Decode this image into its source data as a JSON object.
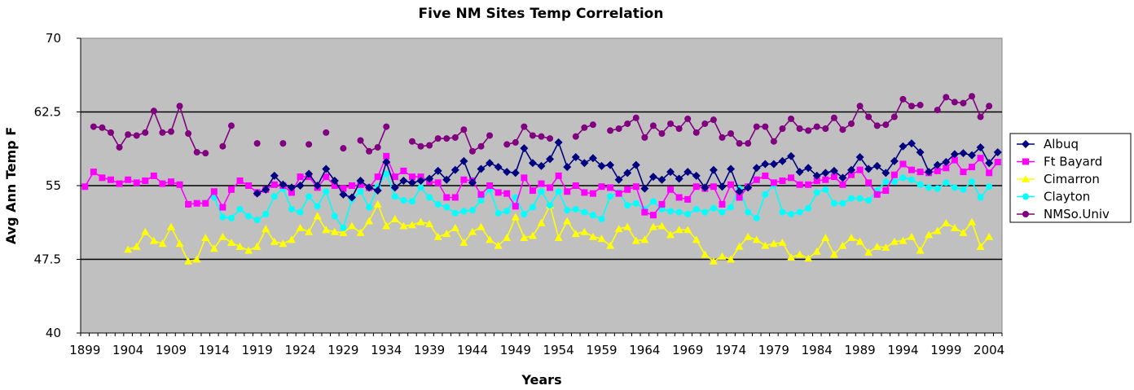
{
  "chart_data": {
    "type": "line",
    "title": "Five NM Sites Temp Correlation",
    "xlabel": "Years",
    "ylabel": "Avg Ann Temp F",
    "ylim": [
      40,
      70
    ],
    "xlim": [
      1899,
      2005
    ],
    "y_ticks": [
      "40",
      "47.5",
      "55",
      "62.5",
      "70"
    ],
    "y_tick_values": [
      40,
      47.5,
      55,
      62.5,
      70
    ],
    "x_ticks": [
      "1899",
      "1904",
      "1909",
      "1914",
      "1919",
      "1924",
      "1929",
      "1934",
      "1939",
      "1944",
      "1949",
      "1954",
      "1959",
      "1964",
      "1969",
      "1974",
      "1979",
      "1984",
      "1989",
      "1994",
      "1999",
      "2004"
    ],
    "gridlines": [
      47.5,
      55,
      62.5
    ],
    "plot_background": "#c0c0c0",
    "legend_position": "right",
    "series": [
      {
        "name": "Albuq",
        "color": "#000080",
        "marker": "diamond",
        "start_year": 1919,
        "values": [
          54.2,
          54.6,
          56.0,
          55.1,
          54.8,
          55.0,
          56.2,
          55.0,
          56.7,
          55.5,
          54.1,
          53.8,
          55.5,
          54.8,
          54.5,
          57.4,
          54.8,
          55.5,
          55.3,
          55.5,
          55.7,
          56.5,
          55.6,
          56.6,
          57.5,
          55.3,
          56.7,
          57.3,
          56.9,
          56.4,
          56.3,
          58.8,
          57.3,
          57.0,
          57.7,
          59.4,
          56.9,
          57.9,
          57.3,
          57.8,
          57.0,
          57.1,
          55.6,
          56.3,
          57.1,
          54.7,
          55.9,
          55.6,
          56.4,
          55.7,
          56.4,
          56.0,
          54.8,
          56.6,
          54.9,
          56.7,
          54.4,
          54.8,
          56.8,
          57.2,
          57.2,
          57.5,
          58.0,
          56.4,
          56.8,
          56.0,
          56.3,
          56.5,
          55.8,
          56.6,
          57.9,
          56.7,
          57.0,
          56.3,
          57.5,
          59.0,
          59.3,
          58.4,
          56.4,
          57.1,
          57.4,
          58.2,
          58.3,
          58.1,
          58.9,
          57.3,
          58.4
        ]
      },
      {
        "name": "Ft Bayard",
        "color": "#ff00ff",
        "marker": "square",
        "start_year": 1899,
        "values": [
          54.9,
          56.4,
          55.8,
          55.6,
          55.2,
          55.6,
          55.3,
          55.5,
          56.0,
          55.2,
          55.4,
          55.1,
          53.1,
          53.2,
          53.2,
          54.4,
          52.8,
          54.6,
          55.5,
          55.0,
          54.3,
          54.6,
          55.1,
          55.0,
          54.3,
          55.9,
          55.9,
          54.8,
          55.9,
          55.0,
          54.7,
          55.0,
          55.1,
          54.8,
          55.9,
          58.0,
          55.9,
          56.5,
          55.9,
          55.9,
          55.4,
          55.3,
          53.8,
          53.8,
          55.6,
          55.5,
          54.1,
          55.0,
          54.3,
          54.2,
          52.9,
          55.8,
          54.5,
          55.2,
          54.8,
          56.0,
          54.4,
          55.0,
          54.3,
          54.2,
          54.9,
          54.8,
          54.2,
          54.6,
          54.9,
          52.3,
          52.0,
          53.1,
          54.6,
          53.8,
          53.6,
          54.9,
          54.7,
          54.9,
          53.1,
          55.1,
          53.8,
          54.9,
          55.6,
          56.0,
          55.3,
          55.5,
          55.8,
          55.1,
          55.1,
          55.5,
          55.6,
          55.9,
          55.1,
          56.1,
          56.6,
          55.3,
          54.1,
          54.5,
          56.1,
          57.2,
          56.6,
          56.4,
          56.3,
          56.5,
          56.8,
          57.6,
          56.4,
          56.9,
          57.8,
          56.3,
          57.4
        ]
      },
      {
        "name": "Cimarron",
        "color": "#ffff00",
        "marker": "triangle",
        "start_year": 1904,
        "values": [
          48.5,
          48.8,
          50.3,
          49.4,
          49.1,
          50.8,
          49.1,
          47.3,
          47.5,
          49.7,
          48.6,
          49.8,
          49.2,
          48.8,
          48.4,
          48.8,
          50.6,
          49.3,
          49.1,
          49.5,
          50.7,
          50.3,
          51.9,
          50.5,
          50.3,
          50.2,
          50.9,
          50.2,
          51.4,
          53.1,
          50.9,
          51.6,
          50.9,
          51.0,
          51.3,
          51.1,
          49.8,
          50.1,
          50.7,
          49.2,
          50.3,
          50.8,
          49.5,
          48.9,
          49.7,
          51.8,
          49.7,
          49.9,
          51.2,
          53.0,
          49.7,
          51.4,
          50.1,
          50.3,
          49.8,
          49.6,
          48.9,
          50.6,
          50.8,
          49.4,
          49.5,
          50.8,
          50.9,
          50.0,
          50.5,
          50.5,
          49.5,
          48.0,
          47.3,
          47.8,
          47.5,
          48.8,
          49.8,
          49.5,
          48.9,
          49.1,
          49.2,
          47.7,
          48.0,
          47.6,
          48.3,
          49.7,
          48.0,
          48.9,
          49.7,
          49.3,
          48.2,
          48.8,
          48.7,
          49.3,
          49.4,
          49.8,
          48.4,
          50.0,
          50.4,
          51.2,
          50.7,
          50.2,
          51.3,
          48.8,
          49.8
        ]
      },
      {
        "name": "Clayton",
        "color": "#00ffff",
        "marker": "circle",
        "start_year": 1914,
        "values": [
          53.8,
          51.8,
          51.7,
          52.6,
          51.9,
          51.5,
          52.1,
          53.9,
          54.7,
          52.6,
          52.3,
          53.9,
          52.9,
          54.4,
          51.9,
          50.7,
          53.6,
          54.4,
          52.8,
          54.9,
          56.2,
          53.9,
          53.5,
          53.4,
          54.8,
          53.8,
          53.1,
          52.8,
          52.2,
          52.4,
          52.5,
          53.5,
          54.6,
          52.2,
          52.4,
          53.8,
          52.1,
          52.8,
          54.4,
          53.0,
          54.4,
          52.5,
          52.6,
          52.3,
          52.0,
          51.6,
          53.9,
          54.3,
          53.0,
          53.2,
          52.6,
          53.4,
          52.6,
          52.4,
          52.3,
          52.1,
          52.6,
          52.3,
          52.7,
          52.3,
          52.8,
          54.7,
          52.3,
          51.7,
          54.1,
          55.1,
          52.3,
          52.1,
          52.3,
          52.7,
          54.3,
          54.6,
          53.2,
          53.2,
          53.7,
          53.7,
          53.5,
          54.5,
          55.4,
          55.4,
          55.8,
          55.6,
          55.1,
          54.8,
          54.7,
          55.3,
          54.8,
          54.6,
          55.4,
          53.8,
          54.9
        ]
      },
      {
        "name": "NMSo.Univ",
        "color": "#800080",
        "marker": "circle",
        "start_year": 1899,
        "segments": [
          {
            "start_year": 1900,
            "values": [
              61.0,
              60.9,
              60.4,
              58.9,
              60.2,
              60.1,
              60.4,
              62.6,
              60.4,
              60.5,
              63.1,
              60.3,
              58.4,
              58.3
            ]
          },
          {
            "start_year": 1915,
            "values": [
              59.0,
              61.1
            ]
          },
          {
            "start_year": 1919,
            "values": [
              59.3
            ]
          },
          {
            "start_year": 1922,
            "values": [
              59.3
            ]
          },
          {
            "start_year": 1925,
            "values": [
              59.2
            ]
          },
          {
            "start_year": 1927,
            "values": [
              60.4
            ]
          },
          {
            "start_year": 1929,
            "values": [
              58.8
            ]
          },
          {
            "start_year": 1931,
            "values": [
              59.6,
              58.5,
              58.9,
              61.0
            ]
          },
          {
            "start_year": 1937,
            "values": [
              59.5,
              59.0,
              59.1,
              59.8,
              59.8,
              59.9,
              60.7,
              58.5,
              59.0,
              60.1
            ]
          },
          {
            "start_year": 1948,
            "values": [
              59.2,
              59.4,
              61.0,
              60.1,
              60.0,
              59.8
            ]
          },
          {
            "start_year": 1956,
            "values": [
              60.0,
              60.9,
              61.2
            ]
          },
          {
            "start_year": 1960,
            "values": [
              60.6,
              60.8,
              61.3,
              61.9,
              59.9,
              61.1,
              60.3,
              61.3,
              60.8,
              61.8,
              60.4,
              61.3,
              61.7,
              59.9,
              60.3,
              59.3,
              59.3,
              61.0,
              61.0,
              59.5,
              60.8,
              61.8,
              60.8,
              60.6,
              61.0,
              60.8,
              61.9,
              60.7,
              61.3,
              63.1,
              62.0,
              61.1,
              61.2,
              62.0,
              63.8,
              63.1,
              63.2
            ]
          },
          {
            "start_year": 1998,
            "values": [
              62.7,
              64.0,
              63.5,
              63.4,
              64.1,
              62.0,
              63.1
            ]
          }
        ]
      }
    ]
  }
}
